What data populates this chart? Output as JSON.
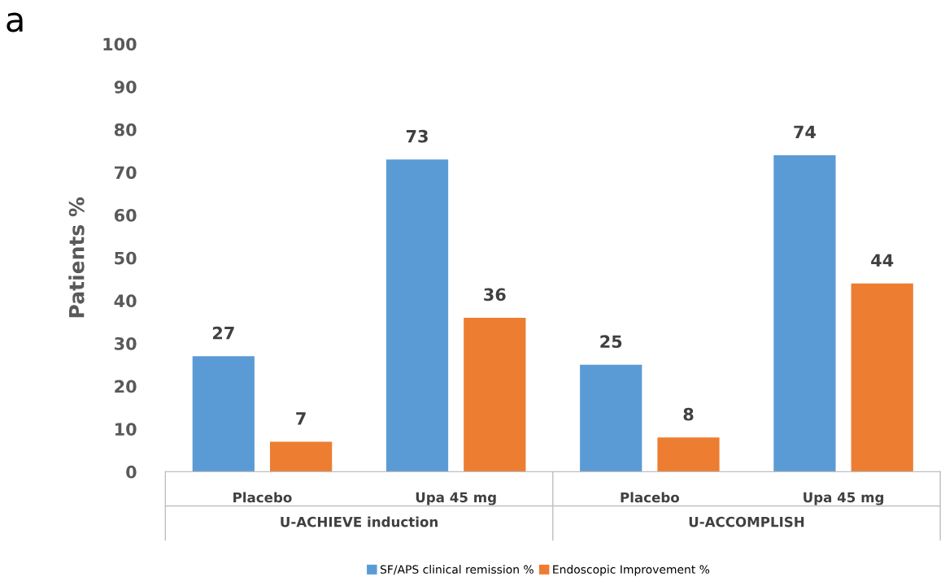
{
  "chart_data": {
    "type": "bar",
    "ylabel": "Patients %",
    "categories": [
      "Placebo",
      "Upa 45 mg",
      "Placebo",
      "Upa 45 mg"
    ],
    "series": [
      {
        "name": "SF/APS clinical remission %",
        "color": "#5b9bd5",
        "values": [
          27,
          73,
          25,
          74
        ]
      },
      {
        "name": "Endoscopic Improvement %",
        "color": "#ed7d31",
        "values": [
          7,
          36,
          8,
          44
        ]
      }
    ],
    "ylim": [
      0,
      100
    ],
    "yticks": [
      0,
      10,
      20,
      30,
      40,
      50,
      60,
      70,
      80,
      90,
      100
    ],
    "data_labels": true,
    "grid": false,
    "legend": "bottom",
    "annotations": [
      "a",
      "U-ACHIEVE induction",
      "U-ACCOMPLISH"
    ]
  }
}
